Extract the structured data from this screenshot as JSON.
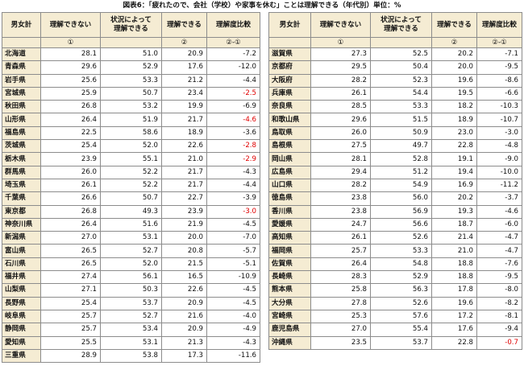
{
  "title": "図表6：「疲れたので、会社（学校）や家事を休む」ことは理解できる（年代別）単位：%",
  "headers": {
    "col1": "男女計",
    "col2": "理解できない",
    "col3": "状況によって\n理解できる",
    "col4": "理解できる",
    "col5": "理解度比較",
    "sub1": "",
    "sub2": "①",
    "sub3": "",
    "sub4": "②",
    "sub5": "②-①"
  },
  "colors": {
    "header_bg": "#f5ecd3",
    "negative_highlight": "#e00000",
    "border": "#8c8c8c"
  },
  "left_rows": [
    {
      "pref": "北海道",
      "a": "28.1",
      "b": "51.0",
      "c": "20.9",
      "d": "-7.2",
      "red": false
    },
    {
      "pref": "青森県",
      "a": "29.6",
      "b": "52.9",
      "c": "17.6",
      "d": "-12.0",
      "red": false
    },
    {
      "pref": "岩手県",
      "a": "25.6",
      "b": "53.3",
      "c": "21.2",
      "d": "-4.4",
      "red": false
    },
    {
      "pref": "宮城県",
      "a": "25.9",
      "b": "50.7",
      "c": "23.4",
      "d": "-2.5",
      "red": true
    },
    {
      "pref": "秋田県",
      "a": "26.8",
      "b": "53.2",
      "c": "19.9",
      "d": "-6.9",
      "red": false
    },
    {
      "pref": "山形県",
      "a": "26.4",
      "b": "51.9",
      "c": "21.7",
      "d": "-4.6",
      "red": true
    },
    {
      "pref": "福島県",
      "a": "22.5",
      "b": "58.6",
      "c": "18.9",
      "d": "-3.6",
      "red": false
    },
    {
      "pref": "茨城県",
      "a": "25.4",
      "b": "52.0",
      "c": "22.6",
      "d": "-2.8",
      "red": true
    },
    {
      "pref": "栃木県",
      "a": "23.9",
      "b": "55.1",
      "c": "21.0",
      "d": "-2.9",
      "red": true
    },
    {
      "pref": "群馬県",
      "a": "26.0",
      "b": "52.2",
      "c": "21.7",
      "d": "-4.3",
      "red": false
    },
    {
      "pref": "埼玉県",
      "a": "26.1",
      "b": "52.2",
      "c": "21.7",
      "d": "-4.4",
      "red": false
    },
    {
      "pref": "千葉県",
      "a": "26.6",
      "b": "50.7",
      "c": "22.7",
      "d": "-3.9",
      "red": false
    },
    {
      "pref": "東京都",
      "a": "26.8",
      "b": "49.3",
      "c": "23.9",
      "d": "-3.0",
      "red": true
    },
    {
      "pref": "神奈川県",
      "a": "26.4",
      "b": "51.6",
      "c": "21.9",
      "d": "-4.5",
      "red": false
    },
    {
      "pref": "新潟県",
      "a": "27.0",
      "b": "53.1",
      "c": "20.0",
      "d": "-7.0",
      "red": false
    },
    {
      "pref": "富山県",
      "a": "26.5",
      "b": "52.7",
      "c": "20.8",
      "d": "-5.7",
      "red": false
    },
    {
      "pref": "石川県",
      "a": "26.5",
      "b": "52.0",
      "c": "21.5",
      "d": "-5.1",
      "red": false
    },
    {
      "pref": "福井県",
      "a": "27.4",
      "b": "56.1",
      "c": "16.5",
      "d": "-10.9",
      "red": false
    },
    {
      "pref": "山梨県",
      "a": "27.1",
      "b": "50.3",
      "c": "22.6",
      "d": "-4.5",
      "red": false
    },
    {
      "pref": "長野県",
      "a": "25.4",
      "b": "53.7",
      "c": "20.9",
      "d": "-4.5",
      "red": false
    },
    {
      "pref": "岐阜県",
      "a": "25.7",
      "b": "52.7",
      "c": "21.6",
      "d": "-4.0",
      "red": false
    },
    {
      "pref": "静岡県",
      "a": "25.7",
      "b": "53.4",
      "c": "20.9",
      "d": "-4.9",
      "red": false
    },
    {
      "pref": "愛知県",
      "a": "25.5",
      "b": "53.1",
      "c": "21.3",
      "d": "-4.3",
      "red": false
    },
    {
      "pref": "三重県",
      "a": "28.9",
      "b": "53.8",
      "c": "17.3",
      "d": "-11.6",
      "red": false
    }
  ],
  "right_rows": [
    {
      "pref": "滋賀県",
      "a": "27.3",
      "b": "52.5",
      "c": "20.2",
      "d": "-7.1",
      "red": false
    },
    {
      "pref": "京都府",
      "a": "29.5",
      "b": "50.4",
      "c": "20.0",
      "d": "-9.5",
      "red": false
    },
    {
      "pref": "大阪府",
      "a": "28.2",
      "b": "52.3",
      "c": "19.6",
      "d": "-8.6",
      "red": false
    },
    {
      "pref": "兵庫県",
      "a": "26.1",
      "b": "54.4",
      "c": "19.5",
      "d": "-6.6",
      "red": false
    },
    {
      "pref": "奈良県",
      "a": "28.5",
      "b": "53.3",
      "c": "18.2",
      "d": "-10.3",
      "red": false
    },
    {
      "pref": "和歌山県",
      "a": "29.6",
      "b": "51.5",
      "c": "18.9",
      "d": "-10.7",
      "red": false
    },
    {
      "pref": "鳥取県",
      "a": "26.0",
      "b": "50.9",
      "c": "23.0",
      "d": "-3.0",
      "red": false
    },
    {
      "pref": "島根県",
      "a": "27.5",
      "b": "49.7",
      "c": "22.8",
      "d": "-4.8",
      "red": false
    },
    {
      "pref": "岡山県",
      "a": "28.1",
      "b": "52.8",
      "c": "19.1",
      "d": "-9.0",
      "red": false
    },
    {
      "pref": "広島県",
      "a": "29.4",
      "b": "51.2",
      "c": "19.4",
      "d": "-10.0",
      "red": false
    },
    {
      "pref": "山口県",
      "a": "28.2",
      "b": "54.9",
      "c": "16.9",
      "d": "-11.2",
      "red": false
    },
    {
      "pref": "徳島県",
      "a": "23.8",
      "b": "56.0",
      "c": "20.2",
      "d": "-3.7",
      "red": false
    },
    {
      "pref": "香川県",
      "a": "23.8",
      "b": "56.9",
      "c": "19.3",
      "d": "-4.6",
      "red": false
    },
    {
      "pref": "愛媛県",
      "a": "24.7",
      "b": "56.6",
      "c": "18.7",
      "d": "-6.0",
      "red": false
    },
    {
      "pref": "高知県",
      "a": "26.1",
      "b": "52.6",
      "c": "21.4",
      "d": "-4.7",
      "red": false
    },
    {
      "pref": "福岡県",
      "a": "25.7",
      "b": "53.3",
      "c": "21.0",
      "d": "-4.7",
      "red": false
    },
    {
      "pref": "佐賀県",
      "a": "26.4",
      "b": "54.8",
      "c": "18.8",
      "d": "-7.6",
      "red": false
    },
    {
      "pref": "長崎県",
      "a": "28.3",
      "b": "52.9",
      "c": "18.8",
      "d": "-9.5",
      "red": false
    },
    {
      "pref": "熊本県",
      "a": "25.8",
      "b": "56.3",
      "c": "17.8",
      "d": "-8.0",
      "red": false
    },
    {
      "pref": "大分県",
      "a": "27.8",
      "b": "52.6",
      "c": "19.6",
      "d": "-8.2",
      "red": false
    },
    {
      "pref": "宮崎県",
      "a": "25.3",
      "b": "57.6",
      "c": "17.2",
      "d": "-8.1",
      "red": false
    },
    {
      "pref": "鹿児島県",
      "a": "27.0",
      "b": "55.4",
      "c": "17.6",
      "d": "-9.4",
      "red": false
    },
    {
      "pref": "沖縄県",
      "a": "23.5",
      "b": "53.7",
      "c": "22.8",
      "d": "-0.7",
      "red": true
    }
  ]
}
